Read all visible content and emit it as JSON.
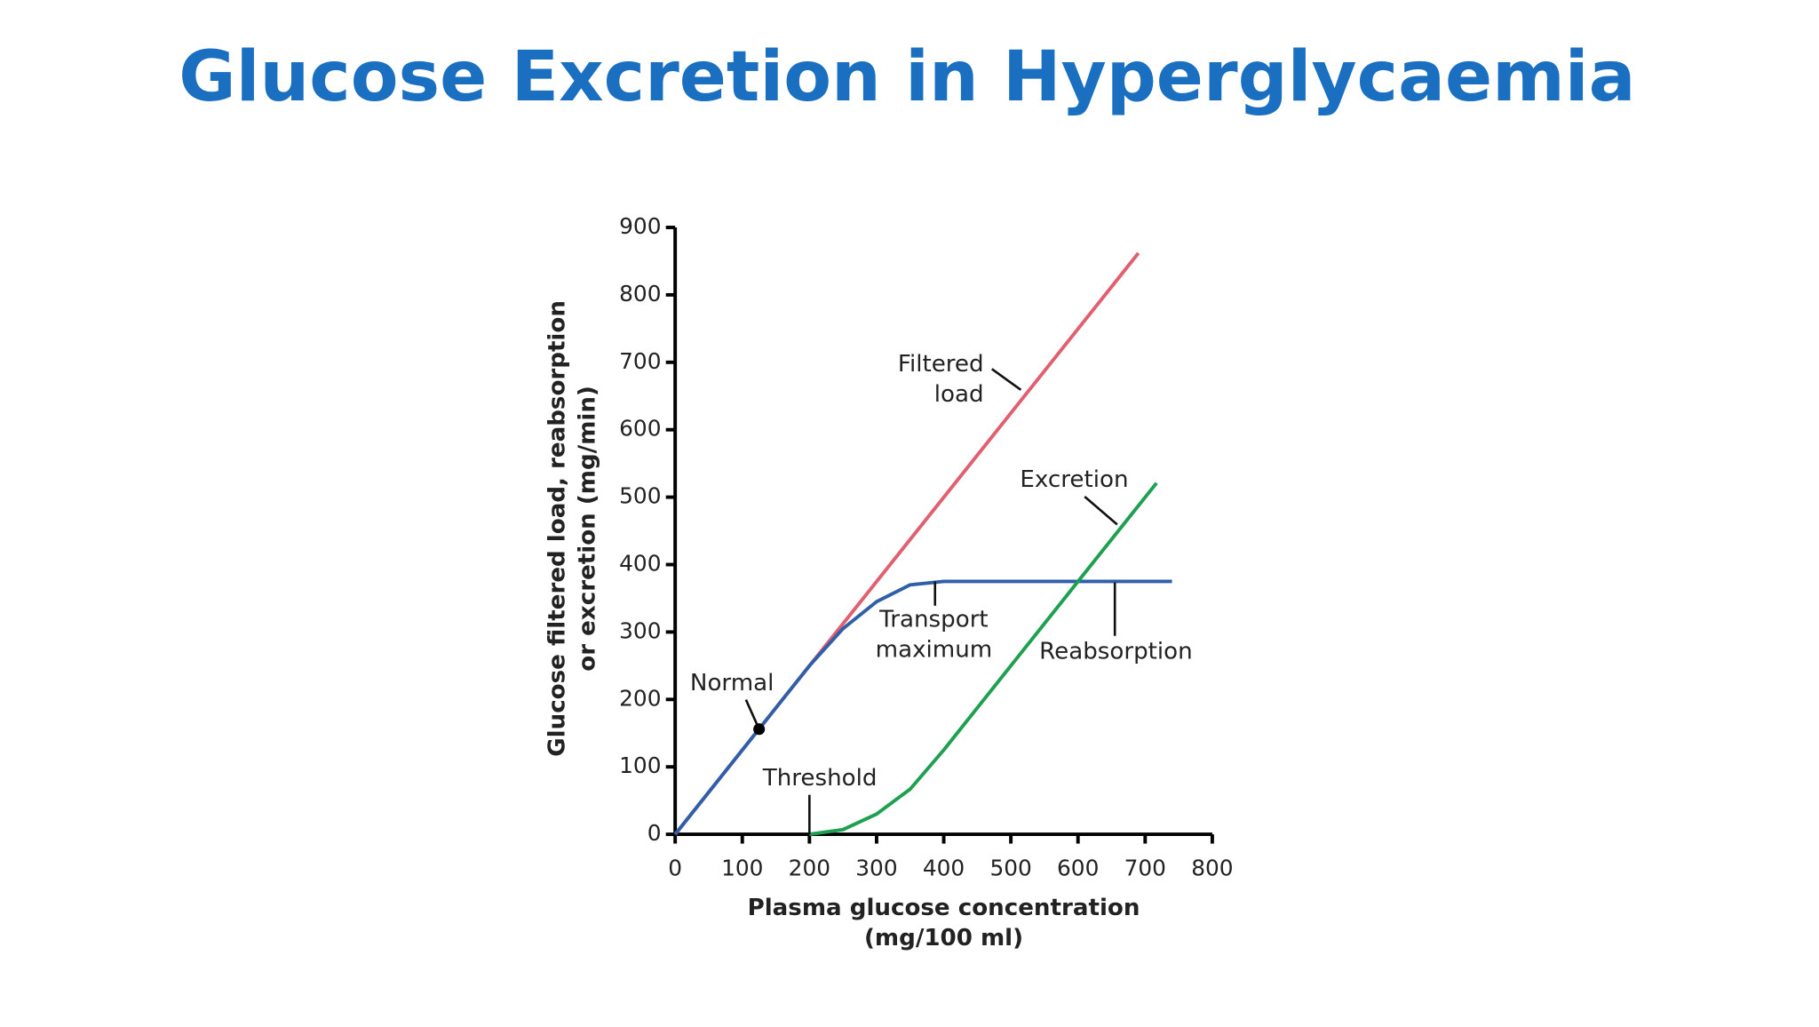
{
  "chart_data": {
    "type": "line",
    "title": "Glucose Excretion in Hyperglycaemia",
    "x_label": [
      "Plasma glucose concentration",
      "(mg/100 ml)"
    ],
    "y_label": [
      "Glucose filtered load, reabsorption",
      "or excretion (mg/min)"
    ],
    "xlim": [
      0,
      800
    ],
    "xticks": [
      0,
      100,
      200,
      300,
      400,
      500,
      600,
      700,
      800
    ],
    "ylim": [
      0,
      900
    ],
    "yticks": [
      0,
      100,
      200,
      300,
      400,
      500,
      600,
      700,
      800,
      900
    ],
    "series": [
      {
        "name": "Filtered load",
        "color": "#e06070",
        "x": [
          0,
          690
        ],
        "values": [
          0,
          862
        ]
      },
      {
        "name": "Reabsorption",
        "color": "#2f5fa8",
        "x": [
          0,
          200,
          250,
          300,
          350,
          400,
          740
        ],
        "values": [
          0,
          250,
          305,
          345,
          370,
          375,
          375
        ]
      },
      {
        "name": "Excretion",
        "color": "#1fa050",
        "x": [
          200,
          250,
          300,
          350,
          400,
          500,
          600,
          717
        ],
        "values": [
          0,
          7,
          30,
          67,
          125,
          250,
          375,
          521
        ]
      }
    ],
    "normal_point": {
      "label": "Normal",
      "x": 125,
      "y": 156
    },
    "threshold": {
      "label": "Threshold",
      "x": 200
    },
    "transport_maximum": {
      "label": "Transport maximum",
      "y": 375
    }
  }
}
